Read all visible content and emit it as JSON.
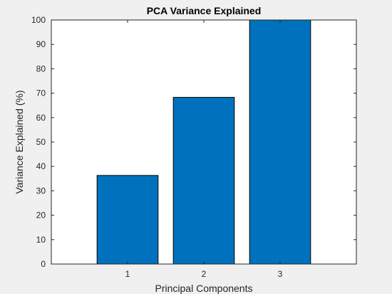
{
  "chart_data": {
    "type": "bar",
    "title": "PCA Variance Explained",
    "xlabel": "Principal Components",
    "ylabel": "Variance Explained (%)",
    "categories": [
      "1",
      "2",
      "3"
    ],
    "x": [
      1,
      2,
      3
    ],
    "values": [
      36.3,
      68.3,
      100
    ],
    "xlim": [
      0,
      4
    ],
    "ylim": [
      0,
      100
    ],
    "yticks": [
      0,
      10,
      20,
      30,
      40,
      50,
      60,
      70,
      80,
      90,
      100
    ],
    "grid": false,
    "legend": "none",
    "bar_color": "#0072bd",
    "bar_edge_color": "#000000"
  },
  "colors": {
    "figure_background": "#f0f0f0",
    "axes_background": "#ffffff",
    "axis_color": "#262626"
  }
}
